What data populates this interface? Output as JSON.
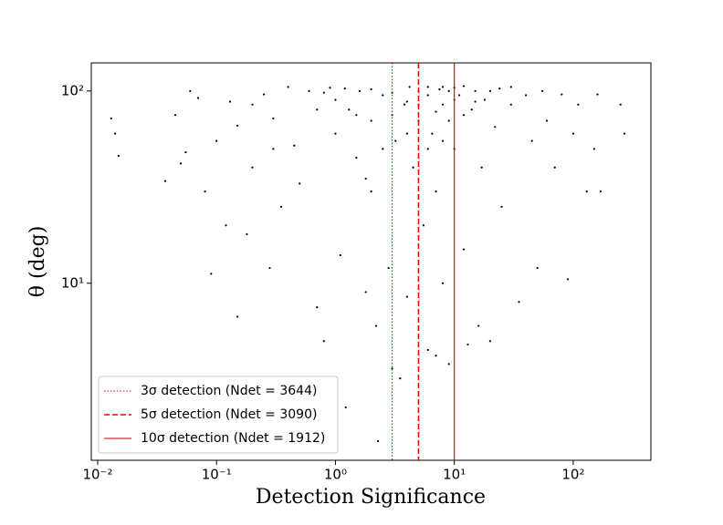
{
  "chart_data": {
    "type": "scatter",
    "x_label": "Detection Significance",
    "y_label": "θ (deg)",
    "xscale": "log",
    "yscale": "log",
    "color": "#000000",
    "xlim": [
      0.00884,
      450
    ],
    "ylim": [
      1.2,
      140
    ],
    "xticks": [
      {
        "value": 0.01,
        "label": "10⁻²"
      },
      {
        "value": 0.1,
        "label": "10⁻¹"
      },
      {
        "value": 1,
        "label": "10⁰"
      },
      {
        "value": 10,
        "label": "10¹"
      },
      {
        "value": 100,
        "label": "10²"
      }
    ],
    "yticks": [
      {
        "value": 10,
        "label": "10¹"
      },
      {
        "value": 100,
        "label": "10²"
      }
    ],
    "legend_position": "lower left",
    "vlines": [
      {
        "name": "3σ detection (Ndet = 3644)",
        "x": 3,
        "style": "dotted",
        "color": "#ff0000"
      },
      {
        "name": "5σ detection (Ndet = 3090)",
        "x": 5,
        "style": "dashed",
        "color": "#ff0000"
      },
      {
        "name": "10σ detection (Ndet = 1912)",
        "x": 10,
        "style": "solid",
        "color": "#cc0000"
      }
    ],
    "x": [
      0.013,
      0.014,
      0.015,
      0.037,
      0.045,
      0.05,
      0.055,
      0.06,
      0.07,
      0.08,
      0.09,
      0.1,
      0.12,
      0.13,
      0.15,
      0.15,
      0.18,
      0.2,
      0.25,
      0.28,
      0.3,
      0.35,
      0.4,
      0.45,
      0.5,
      1.22,
      2.28,
      0.7,
      0.8,
      0.9,
      1,
      1,
      1.1,
      1.3,
      1.5,
      1.6,
      1.8,
      2,
      2,
      2.2,
      2.5,
      2.8,
      3,
      3.2,
      3.5,
      3.8,
      4,
      4.2,
      4.5,
      5,
      5,
      5.5,
      6,
      6,
      6.5,
      7,
      7,
      7.5,
      8,
      8,
      9,
      9,
      10,
      10,
      11,
      12,
      13,
      14,
      15,
      16,
      17,
      18,
      20,
      22,
      24,
      25,
      30,
      35,
      40,
      45,
      50,
      55,
      60,
      70,
      80,
      90,
      100,
      110,
      130,
      150,
      160,
      170,
      250,
      270,
      0.6,
      0.7,
      0.8,
      1.2,
      1.5,
      2,
      3,
      4,
      6,
      7,
      9,
      12,
      15,
      20,
      30,
      3,
      5,
      8,
      10,
      12,
      4,
      6,
      8,
      2.5,
      1.8,
      0.3,
      0.2
    ],
    "values": [
      72,
      60,
      46,
      34,
      75,
      42,
      48,
      100,
      92,
      30,
      11.2,
      55,
      20,
      88,
      66,
      6.7,
      18,
      40,
      96,
      12,
      72,
      25,
      105,
      52,
      33,
      2.26,
      1.51,
      7.5,
      5,
      104,
      60,
      90,
      14,
      80,
      45,
      100,
      9,
      70,
      30,
      6,
      95,
      12,
      3.6,
      55,
      3.2,
      85,
      8.5,
      105,
      40,
      100,
      70,
      20,
      4.5,
      95,
      60,
      4.2,
      30,
      102,
      85,
      10,
      3.8,
      70,
      104,
      50,
      95,
      15,
      4.8,
      80,
      100,
      6,
      40,
      90,
      5,
      65,
      103,
      25,
      85,
      8,
      95,
      55,
      12,
      100,
      70,
      40,
      96,
      10.5,
      60,
      85,
      30,
      50,
      96,
      30,
      85,
      60,
      100,
      80,
      98,
      103,
      75,
      102,
      98,
      88,
      105,
      78,
      100,
      75,
      88,
      100,
      105,
      75,
      85,
      105,
      90,
      106,
      60,
      50,
      55,
      50,
      35,
      50,
      85
    ]
  }
}
